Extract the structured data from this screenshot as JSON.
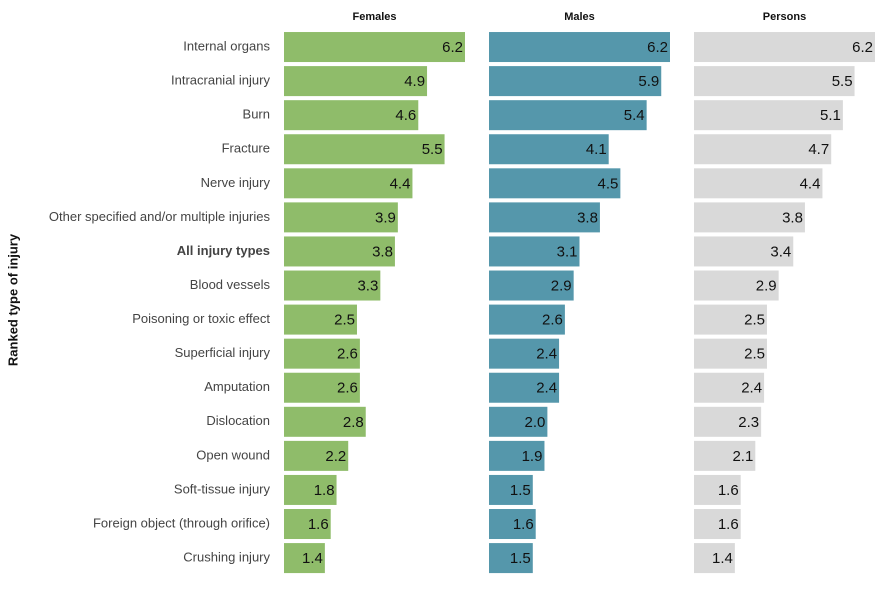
{
  "chart_data": {
    "type": "bar",
    "orientation": "horizontal",
    "y_label": "Ranked type of injury",
    "categories": [
      "Internal organs",
      "Intracranial injury",
      "Burn",
      "Fracture",
      "Nerve injury",
      "Other specified and/or multiple injuries",
      "All injury types",
      "Blood vessels",
      "Poisoning or toxic effect",
      "Superficial injury",
      "Amputation",
      "Dislocation",
      "Open wound",
      "Soft-tissue injury",
      "Foreign object (through orifice)",
      "Crushing injury"
    ],
    "bold_category": 6,
    "xlim": [
      0,
      6.2
    ],
    "series": [
      {
        "name": "Females",
        "color": "#8fbc6a",
        "values": [
          6.2,
          4.9,
          4.6,
          5.5,
          4.4,
          3.9,
          3.8,
          3.3,
          2.5,
          2.6,
          2.6,
          2.8,
          2.2,
          1.8,
          1.6,
          1.4
        ],
        "value_labels": [
          "6.2",
          "4.9",
          "4.6",
          "5.5",
          "4.4",
          "3.9",
          "3.8",
          "3.3",
          "2.5",
          "2.6",
          "2.6",
          "2.8",
          "2.2",
          "1.8",
          "1.6",
          "1.4"
        ]
      },
      {
        "name": "Males",
        "color": "#5597ab",
        "values": [
          6.2,
          5.9,
          5.4,
          4.1,
          4.5,
          3.8,
          3.1,
          2.9,
          2.6,
          2.4,
          2.4,
          2.0,
          1.9,
          1.5,
          1.6,
          1.5
        ],
        "value_labels": [
          "6.2",
          "5.9",
          "5.4",
          "4.1",
          "4.5",
          "3.8",
          "3.1",
          "2.9",
          "2.6",
          "2.4",
          "2.4",
          "2.0",
          "1.9",
          "1.5",
          "1.6",
          "1.5"
        ]
      },
      {
        "name": "Persons",
        "color": "#d9d9d9",
        "values": [
          6.2,
          5.5,
          5.1,
          4.7,
          4.4,
          3.8,
          3.4,
          2.9,
          2.5,
          2.5,
          2.4,
          2.3,
          2.1,
          1.6,
          1.6,
          1.4
        ],
        "value_labels": [
          "6.2",
          "5.5",
          "5.1",
          "4.7",
          "4.4",
          "3.8",
          "3.4",
          "2.9",
          "2.5",
          "2.5",
          "2.4",
          "2.3",
          "2.1",
          "1.6",
          "1.6",
          "1.4"
        ]
      }
    ]
  }
}
